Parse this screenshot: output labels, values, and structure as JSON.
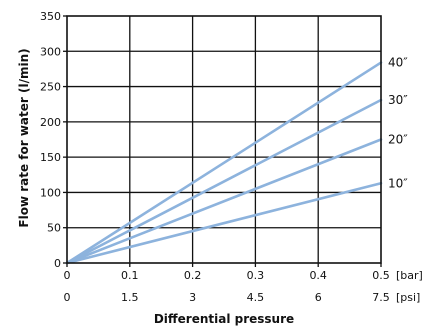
{
  "chart_data": {
    "type": "line",
    "xlabel": "Differential pressure",
    "ylabel": "Flow rate for water (l/min)",
    "x_unit_primary": "[bar]",
    "x_unit_secondary": "[psi]",
    "xlim": [
      0,
      0.5
    ],
    "ylim": [
      0,
      350
    ],
    "x_ticks": [
      "0",
      "0.1",
      "0.2",
      "0.3",
      "0.4",
      "0.5"
    ],
    "x_ticks_secondary": [
      "0",
      "1.5",
      "3",
      "4.5",
      "6",
      "7.5"
    ],
    "y_ticks": [
      "0",
      "50",
      "100",
      "150",
      "200",
      "250",
      "300",
      "350"
    ],
    "x_tick_values": [
      0,
      0.1,
      0.2,
      0.3,
      0.4,
      0.5
    ],
    "y_tick_values": [
      0,
      50,
      100,
      150,
      200,
      250,
      300,
      350
    ],
    "grid": true,
    "line_color": "#8db3dd",
    "series": [
      {
        "name": "40″",
        "x": [
          0,
          0.5
        ],
        "values": [
          0,
          284
        ]
      },
      {
        "name": "30″",
        "x": [
          0,
          0.5
        ],
        "values": [
          0,
          231
        ]
      },
      {
        "name": "20″",
        "x": [
          0,
          0.5
        ],
        "values": [
          0,
          175
        ]
      },
      {
        "name": "10″",
        "x": [
          0,
          0.5
        ],
        "values": [
          0,
          113
        ]
      }
    ]
  }
}
